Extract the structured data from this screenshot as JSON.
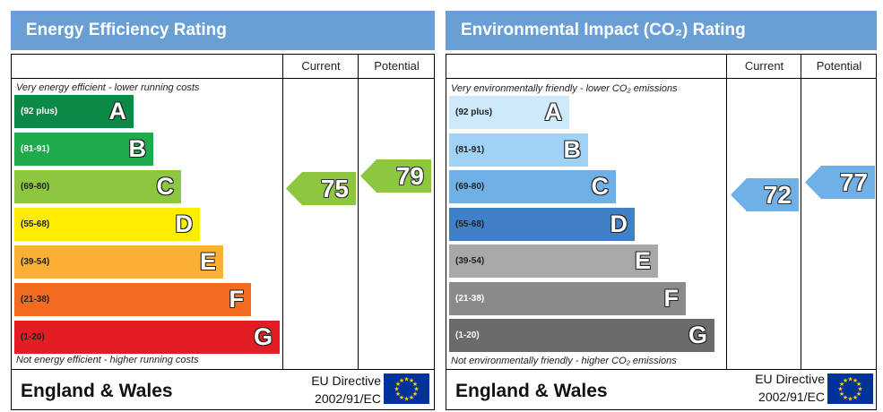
{
  "chart_data": [
    {
      "type": "bar",
      "title": "Energy Efficiency Rating",
      "columns": [
        "Current",
        "Potential"
      ],
      "top_note": "Very energy efficient - lower running costs",
      "bottom_note": "Not energy efficient - higher running costs",
      "bands": [
        {
          "range": "(92 plus)",
          "letter": "A",
          "color": "#0b8a47",
          "text_color": "#ffffff",
          "order": 1
        },
        {
          "range": "(81-91)",
          "letter": "B",
          "color": "#1faa4b",
          "text_color": "#ffffff",
          "order": 2
        },
        {
          "range": "(69-80)",
          "letter": "C",
          "color": "#8dc63f",
          "text_color": "#222222",
          "order": 3
        },
        {
          "range": "(55-68)",
          "letter": "D",
          "color": "#ffed00",
          "text_color": "#222222",
          "order": 4
        },
        {
          "range": "(39-54)",
          "letter": "E",
          "color": "#fbb034",
          "text_color": "#222222",
          "order": 5
        },
        {
          "range": "(21-38)",
          "letter": "F",
          "color": "#f26b21",
          "text_color": "#222222",
          "order": 6
        },
        {
          "range": "(1-20)",
          "letter": "G",
          "color": "#e31d23",
          "text_color": "#222222",
          "order": 7
        }
      ],
      "current": {
        "value": "75",
        "band_index": 2,
        "color": "#8dc63f"
      },
      "potential": {
        "value": "79",
        "band_index": 2,
        "color": "#8dc63f"
      },
      "footer": {
        "region": "England & Wales",
        "directive_line1": "EU Directive",
        "directive_line2": "2002/91/EC"
      }
    },
    {
      "type": "bar",
      "title": "Environmental Impact (CO₂) Rating",
      "columns": [
        "Current",
        "Potential"
      ],
      "top_note": "Very environmentally friendly - lower CO₂ emissions",
      "bottom_note": "Not environmentally friendly - higher CO₂ emissions",
      "bands": [
        {
          "range": "(92 plus)",
          "letter": "A",
          "color": "#cde9fa",
          "text_color": "#222222",
          "order": 1
        },
        {
          "range": "(81-91)",
          "letter": "B",
          "color": "#9fd2f5",
          "text_color": "#222222",
          "order": 2
        },
        {
          "range": "(69-80)",
          "letter": "C",
          "color": "#6fb1e6",
          "text_color": "#222222",
          "order": 3
        },
        {
          "range": "(55-68)",
          "letter": "D",
          "color": "#3f80c7",
          "text_color": "#222222",
          "order": 4
        },
        {
          "range": "(39-54)",
          "letter": "E",
          "color": "#a8a8a8",
          "text_color": "#222222",
          "order": 5
        },
        {
          "range": "(21-38)",
          "letter": "F",
          "color": "#8a8a8a",
          "text_color": "#ffffff",
          "order": 6
        },
        {
          "range": "(1-20)",
          "letter": "G",
          "color": "#6b6b6b",
          "text_color": "#ffffff",
          "order": 7
        }
      ],
      "current": {
        "value": "72",
        "band_index": 2,
        "color": "#6fb1e6"
      },
      "potential": {
        "value": "77",
        "band_index": 2,
        "color": "#6fb1e6"
      },
      "footer": {
        "region": "England & Wales",
        "directive_line1": "EU Directive",
        "directive_line2": "2002/91/EC"
      }
    }
  ]
}
